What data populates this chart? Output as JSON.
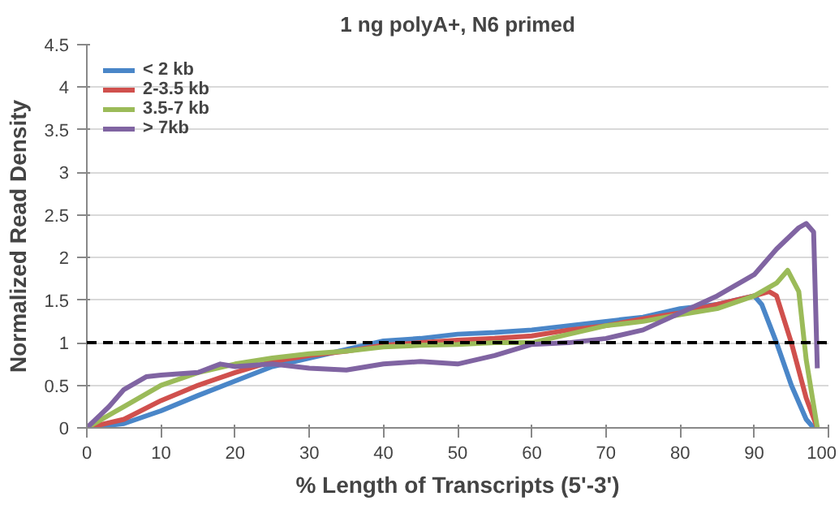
{
  "chart_data": {
    "type": "line",
    "title": "1 ng polyA+, N6 primed",
    "xlabel": "% Length of Transcripts (5'-3')",
    "ylabel": "Normalized Read Density",
    "xlim": [
      0,
      100
    ],
    "xticks": [
      0,
      10,
      20,
      30,
      40,
      50,
      60,
      70,
      80,
      90,
      100
    ],
    "ylim": [
      0,
      4.5
    ],
    "yticks": [
      0,
      0.5,
      1,
      1.5,
      2,
      2.5,
      3,
      3.5,
      4,
      4.5
    ],
    "grid": "y",
    "legend": "top left",
    "marker": "none",
    "line_style": "solid",
    "ref_lines": [
      {
        "axis": "y",
        "value": 1,
        "color": "#000000",
        "line_style": "dashed"
      }
    ],
    "series": [
      {
        "name": "< 2 kb",
        "color": "#4a86c8",
        "x": [
          0,
          5,
          10,
          15,
          20,
          25,
          30,
          35,
          40,
          45,
          50,
          55,
          60,
          65,
          70,
          75,
          80,
          85,
          90,
          91,
          93,
          95,
          97,
          98
        ],
        "values": [
          0,
          0.05,
          0.2,
          0.38,
          0.55,
          0.72,
          0.82,
          0.92,
          1.02,
          1.05,
          1.1,
          1.12,
          1.15,
          1.2,
          1.25,
          1.3,
          1.4,
          1.45,
          1.55,
          1.45,
          1.0,
          0.5,
          0.1,
          0
        ]
      },
      {
        "name": "2-3.5 kb",
        "color": "#d0504d",
        "x": [
          0,
          5,
          10,
          15,
          20,
          25,
          30,
          35,
          40,
          45,
          50,
          55,
          60,
          65,
          70,
          75,
          80,
          85,
          90,
          92,
          93,
          95,
          97,
          98.5
        ],
        "values": [
          0,
          0.1,
          0.32,
          0.5,
          0.65,
          0.78,
          0.85,
          0.9,
          0.97,
          1.0,
          1.03,
          1.05,
          1.08,
          1.15,
          1.2,
          1.28,
          1.35,
          1.45,
          1.55,
          1.6,
          1.55,
          1.0,
          0.35,
          0
        ]
      },
      {
        "name": "3.5-7 kb",
        "color": "#9bbb59",
        "x": [
          0,
          5,
          10,
          15,
          20,
          25,
          30,
          35,
          40,
          45,
          50,
          55,
          60,
          65,
          70,
          75,
          80,
          85,
          90,
          93,
          94.5,
          96,
          97,
          98.5
        ],
        "values": [
          0,
          0.25,
          0.5,
          0.65,
          0.75,
          0.82,
          0.87,
          0.9,
          0.95,
          0.97,
          0.98,
          1.0,
          1.0,
          1.1,
          1.2,
          1.25,
          1.33,
          1.4,
          1.55,
          1.7,
          1.85,
          1.6,
          0.8,
          0
        ]
      },
      {
        "name": "> 7kb",
        "color": "#8064a2",
        "x": [
          0,
          3,
          5,
          8,
          10,
          15,
          18,
          20,
          25,
          30,
          35,
          40,
          45,
          50,
          55,
          60,
          65,
          70,
          75,
          80,
          85,
          90,
          93,
          96,
          97,
          98,
          98.5
        ],
        "values": [
          0,
          0.25,
          0.45,
          0.6,
          0.62,
          0.65,
          0.75,
          0.72,
          0.75,
          0.7,
          0.68,
          0.75,
          0.78,
          0.75,
          0.85,
          0.98,
          1.0,
          1.05,
          1.15,
          1.35,
          1.55,
          1.8,
          2.1,
          2.35,
          2.4,
          2.3,
          0.7
        ]
      }
    ]
  }
}
